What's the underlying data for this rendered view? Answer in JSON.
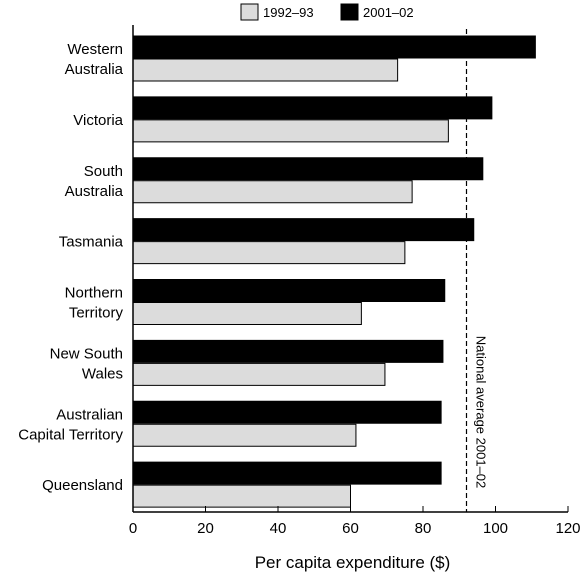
{
  "chart_data": {
    "type": "bar",
    "orientation": "horizontal",
    "xlabel": "Per capita expenditure ($)",
    "xlim": [
      0,
      120
    ],
    "xticks": [
      0,
      20,
      40,
      60,
      80,
      100,
      120
    ],
    "categories": [
      [
        "Western",
        "Australia"
      ],
      [
        "Victoria"
      ],
      [
        "South",
        "Australia"
      ],
      [
        "Tasmania"
      ],
      [
        "Northern",
        "Territory"
      ],
      [
        "New South",
        "Wales"
      ],
      [
        "Australian",
        "Capital Territory"
      ],
      [
        "Queensland"
      ]
    ],
    "series": [
      {
        "name": "1992–93",
        "color": "#dcdcdc",
        "values": [
          73,
          87,
          77,
          75,
          63,
          69.5,
          61.5,
          60
        ]
      },
      {
        "name": "2001–02",
        "color": "#000000",
        "values": [
          111,
          99,
          96.5,
          94,
          86,
          85.5,
          85,
          85
        ]
      }
    ],
    "reference_line": {
      "value": 92,
      "label": "National average 2001–02",
      "style": "dashed"
    },
    "legend": {
      "placement": "top"
    },
    "grid": false
  }
}
